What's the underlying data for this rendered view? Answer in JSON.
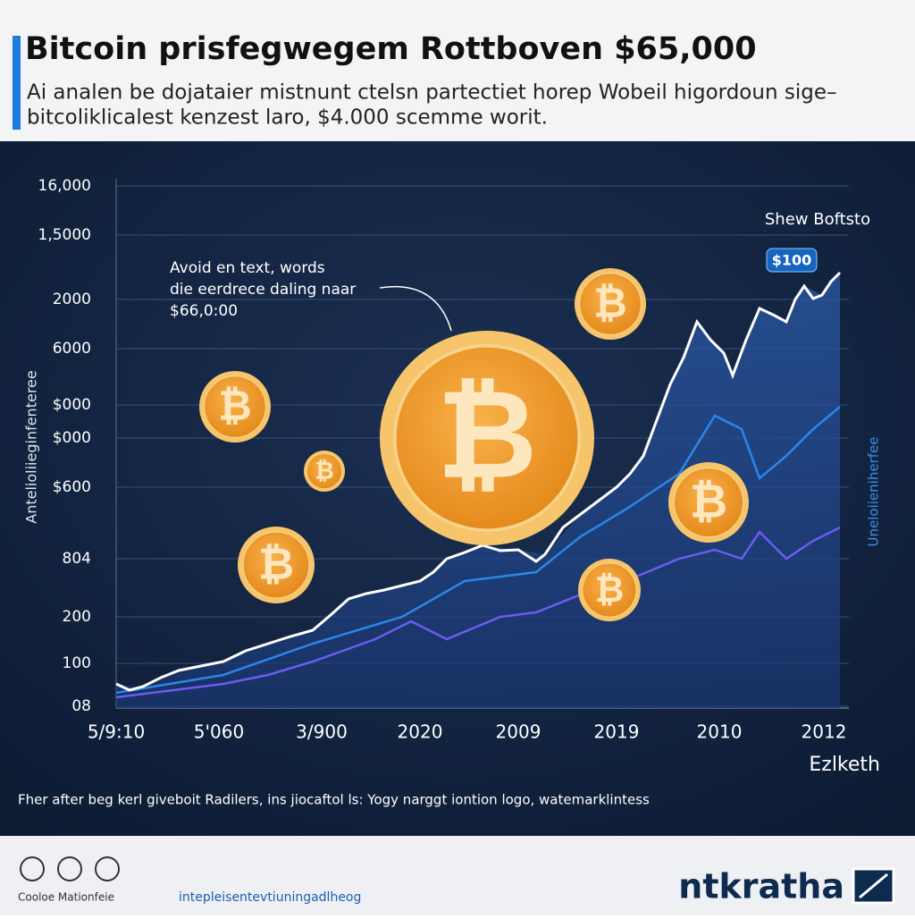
{
  "header": {
    "title": "Bitcoin prisfegwegem Rottboven $65,000",
    "subtitle": [
      "Ai analen be dojataier mistnunt ctelsn partectiet horep Wobeil higordoun sige–",
      "bitcoliklicalest kenzest laro, $4.000 scemme worit."
    ]
  },
  "axis": {
    "y_title": "Antelioliieginfenteree",
    "y2_title": "Uneloiieniherfee",
    "y_labels": [
      "16,000",
      "1,5000",
      "2000",
      "6000",
      "$000",
      "$000",
      "$600",
      "804",
      "200",
      "100",
      "08"
    ],
    "x_labels": [
      "5/9:10",
      "5'060",
      "3/900",
      "2020",
      "2009",
      "2019",
      "2010",
      "2012"
    ]
  },
  "annotation": [
    "Avoid en text, words",
    "die eerdrece daling naar",
    "$66,0:00"
  ],
  "callout": {
    "label": "Shew Boftsto",
    "badge": "$100"
  },
  "coin_symbol": "₿",
  "watermark": "Ezlketh",
  "footnote": "Fher after beg kerl giveboit Radilers, ins jiocaftol ls: Yogy narggt iontion logo, watemarklintess",
  "footer": {
    "left": "Cooloe Mationfeie",
    "link": "intepleisentevtiuningadlheog",
    "logo": "ntkratha"
  }
}
